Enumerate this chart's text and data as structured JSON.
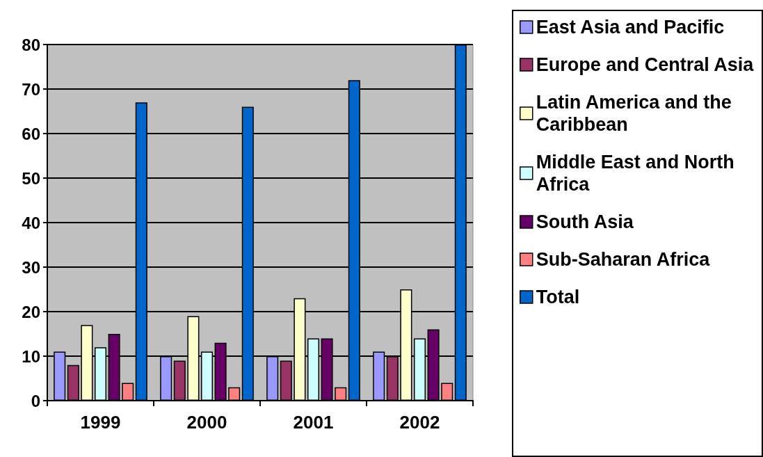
{
  "chart_data": {
    "type": "bar",
    "categories": [
      "1999",
      "2000",
      "2001",
      "2002"
    ],
    "series": [
      {
        "name": "East Asia and Pacific",
        "color": "#9999ff",
        "values": [
          11,
          10,
          10,
          11
        ]
      },
      {
        "name": "Europe and Central Asia",
        "color": "#993366",
        "values": [
          8,
          9,
          9,
          10
        ]
      },
      {
        "name": "Latin America and the Caribbean",
        "color": "#ffffcc",
        "values": [
          17,
          19,
          23,
          25
        ]
      },
      {
        "name": "Middle East and North Africa",
        "color": "#ccffff",
        "values": [
          12,
          11,
          14,
          14
        ]
      },
      {
        "name": "South Asia",
        "color": "#660066",
        "values": [
          15,
          13,
          14,
          16
        ]
      },
      {
        "name": "Sub-Saharan Africa",
        "color": "#ff8080",
        "values": [
          4,
          3,
          3,
          4
        ]
      },
      {
        "name": "Total",
        "color": "#0066cc",
        "values": [
          67,
          66,
          72,
          80
        ]
      }
    ],
    "ylim": [
      0,
      80
    ],
    "yticks": [
      0,
      10,
      20,
      30,
      40,
      50,
      60,
      70,
      80
    ],
    "grid": "y",
    "legend": "right"
  }
}
